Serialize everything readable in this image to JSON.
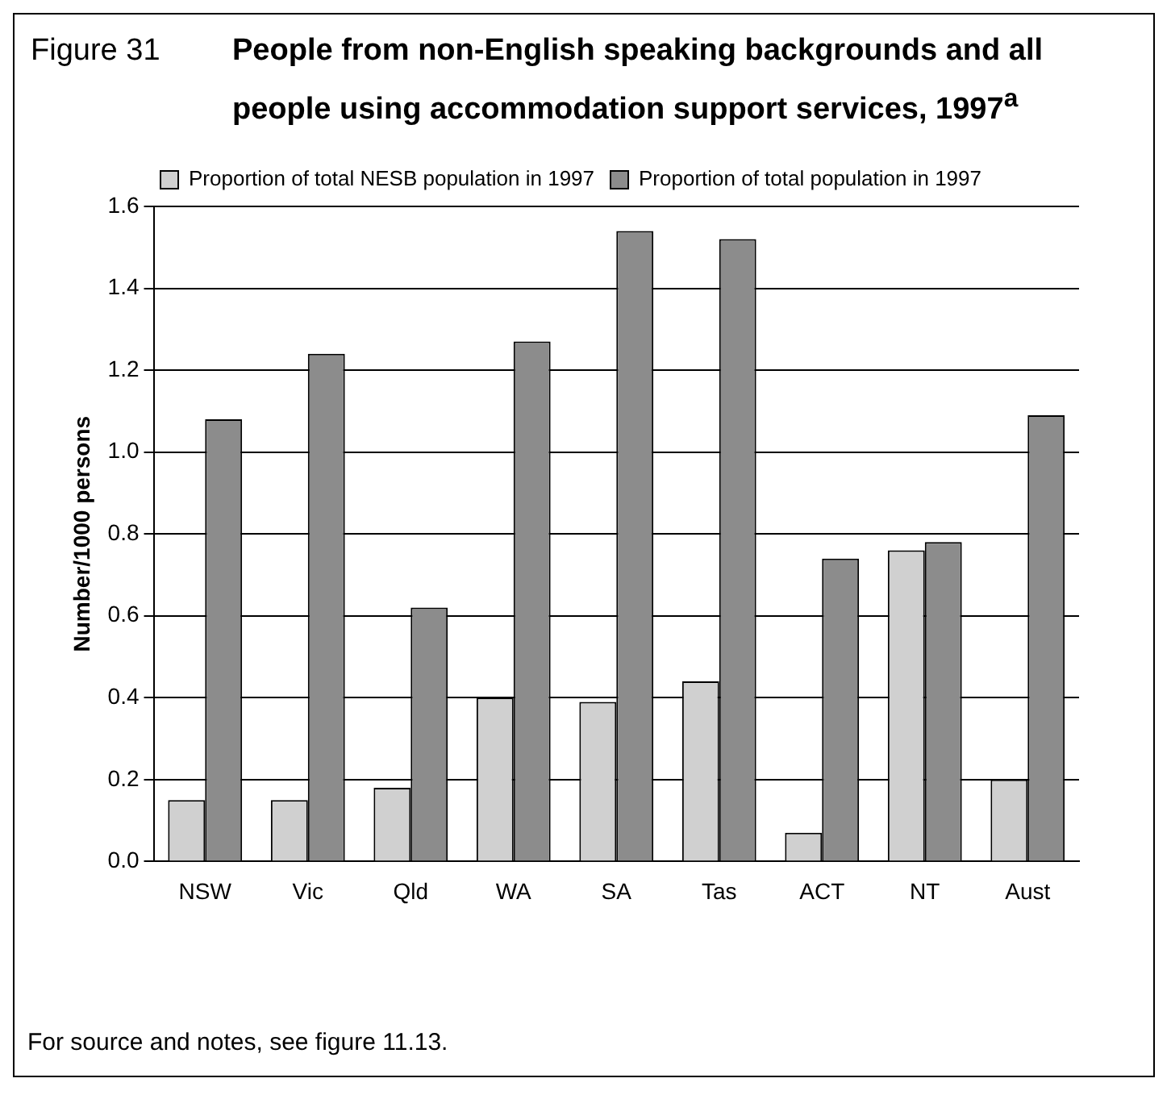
{
  "chart_data": {
    "type": "bar",
    "title": "People from non-English speaking backgrounds and all people using accommodation support services, 1997$^{a}$",
    "annotations": [
      "Figure 31",
      "For source and notes, see figure 11.13."
    ],
    "ylabel": "Number/1000 persons",
    "categories": [
      "NSW",
      "Vic",
      "Qld",
      "WA",
      "SA",
      "Tas",
      "ACT",
      "NT",
      "Aust"
    ],
    "series": [
      {
        "name": "Proportion of total NESB population in 1997",
        "color": "#d0d0d0",
        "values": [
          0.15,
          0.15,
          0.18,
          0.4,
          0.39,
          0.44,
          0.07,
          0.76,
          0.2
        ]
      },
      {
        "name": "Proportion of total population in 1997",
        "color": "#8c8c8c",
        "values": [
          1.08,
          1.24,
          0.62,
          1.27,
          1.54,
          1.52,
          0.74,
          0.78,
          1.09
        ]
      }
    ],
    "ylim": [
      0,
      1.6
    ],
    "yticks": [
      {
        "value": 0,
        "label": "0.0"
      },
      0.2,
      0.4,
      0.6,
      0.8,
      {
        "value": 1,
        "label": "1.0"
      },
      1.2,
      1.4,
      1.6
    ],
    "grid": "y",
    "legend": "top"
  }
}
